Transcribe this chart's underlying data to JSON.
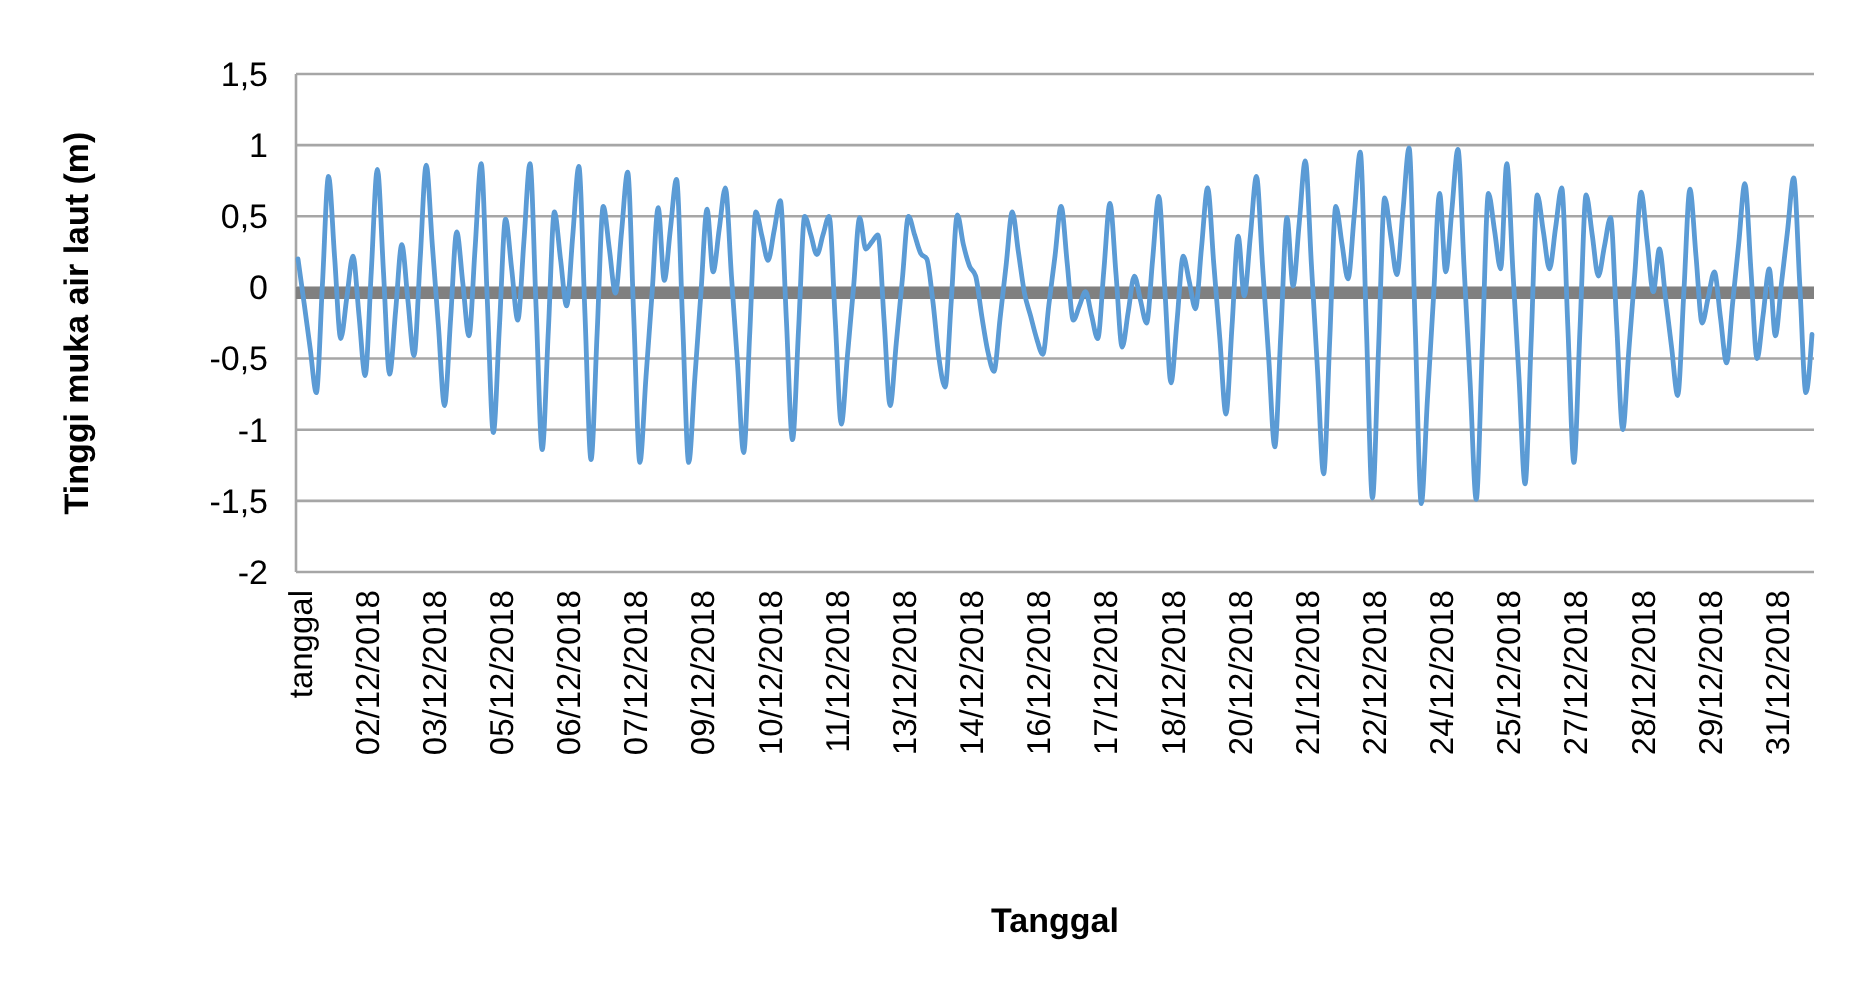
{
  "chart_data": {
    "type": "line",
    "xlabel": "Tanggal",
    "ylabel": "Tinggi muka air laut (m)",
    "categories": [
      "tanggal",
      null,
      null,
      null,
      null,
      null,
      null,
      null,
      null,
      null,
      null,
      "02/12/2018",
      null,
      null,
      null,
      null,
      null,
      null,
      null,
      null,
      null,
      null,
      "03/12/2018",
      null,
      null,
      null,
      null,
      null,
      null,
      null,
      null,
      null,
      null,
      "05/12/2018",
      null,
      null,
      null,
      null,
      null,
      null,
      null,
      null,
      null,
      null,
      "06/12/2018",
      null,
      null,
      null,
      null,
      null,
      null,
      null,
      null,
      null,
      null,
      "07/12/2018",
      null,
      null,
      null,
      null,
      null,
      null,
      null,
      null,
      null,
      null,
      "09/12/2018",
      null,
      null,
      null,
      null,
      null,
      null,
      null,
      null,
      null,
      null,
      "10/12/2018",
      null,
      null,
      null,
      null,
      null,
      null,
      null,
      null,
      null,
      null,
      "11/12/2018",
      null,
      null,
      null,
      null,
      null,
      null,
      null,
      null,
      null,
      null,
      "13/12/2018",
      null,
      null,
      null,
      null,
      null,
      null,
      null,
      null,
      null,
      null,
      "14/12/2018",
      null,
      null,
      null,
      null,
      null,
      null,
      null,
      null,
      null,
      null,
      "16/12/2018",
      null,
      null,
      null,
      null,
      null,
      null,
      null,
      null,
      null,
      null,
      "17/12/2018",
      null,
      null,
      null,
      null,
      null,
      null,
      null,
      null,
      null,
      null,
      "18/12/2018",
      null,
      null,
      null,
      null,
      null,
      null,
      null,
      null,
      null,
      null,
      "20/12/2018",
      null,
      null,
      null,
      null,
      null,
      null,
      null,
      null,
      null,
      null,
      "21/12/2018",
      null,
      null,
      null,
      null,
      null,
      null,
      null,
      null,
      null,
      null,
      "22/12/2018",
      null,
      null,
      null,
      null,
      null,
      null,
      null,
      null,
      null,
      null,
      "24/12/2018",
      null,
      null,
      null,
      null,
      null,
      null,
      null,
      null,
      null,
      null,
      "25/12/2018",
      null,
      null,
      null,
      null,
      null,
      null,
      null,
      null,
      null,
      null,
      "27/12/2018",
      null,
      null,
      null,
      null,
      null,
      null,
      null,
      null,
      null,
      null,
      "28/12/2018",
      null,
      null,
      null,
      null,
      null,
      null,
      null,
      null,
      null,
      null,
      "29/12/2018",
      null,
      null,
      null,
      null,
      null,
      null,
      null,
      null,
      null,
      null,
      "31/12/2018",
      null,
      null,
      null,
      null,
      null,
      null
    ],
    "series": [
      {
        "color": "#5b9bd5",
        "values": [
          0.2,
          -0.11,
          -0.43,
          -0.74,
          0.02,
          0.78,
          0.21,
          -0.36,
          -0.07,
          0.22,
          -0.2,
          -0.62,
          0.11,
          0.83,
          0.11,
          -0.61,
          -0.16,
          0.3,
          -0.09,
          -0.48,
          0.19,
          0.86,
          0.3,
          -0.27,
          -0.83,
          -0.22,
          0.39,
          0.03,
          -0.34,
          0.27,
          0.87,
          -0.08,
          -1.02,
          -0.27,
          0.48,
          0.13,
          -0.23,
          0.32,
          0.87,
          -0.14,
          -1.14,
          -0.31,
          0.53,
          0.2,
          -0.13,
          0.36,
          0.85,
          -0.18,
          -1.21,
          -0.32,
          0.57,
          0.27,
          -0.04,
          0.39,
          0.81,
          -0.21,
          -1.23,
          -0.63,
          -0.04,
          0.56,
          0.05,
          0.41,
          0.76,
          -0.24,
          -1.23,
          -0.64,
          -0.04,
          0.55,
          0.11,
          0.41,
          0.7,
          0.08,
          -0.54,
          -1.16,
          -0.32,
          0.53,
          0.36,
          0.19,
          0.4,
          0.61,
          -0.23,
          -1.07,
          -0.29,
          0.5,
          0.37,
          0.23,
          0.37,
          0.5,
          -0.23,
          -0.96,
          -0.48,
          0.0,
          0.49,
          0.27,
          0.32,
          0.37,
          -0.23,
          -0.83,
          -0.39,
          0.06,
          0.5,
          0.37,
          0.24,
          0.2,
          -0.1,
          -0.5,
          -0.7,
          -0.1,
          0.51,
          0.3,
          0.15,
          0.08,
          -0.2,
          -0.45,
          -0.59,
          -0.22,
          0.16,
          0.53,
          0.25,
          -0.04,
          -0.2,
          -0.36,
          -0.47,
          -0.12,
          0.22,
          0.57,
          0.17,
          -0.23,
          -0.13,
          -0.03,
          -0.2,
          -0.36,
          0.12,
          0.59,
          0.09,
          -0.42,
          -0.17,
          0.08,
          -0.09,
          -0.25,
          0.2,
          0.64,
          -0.02,
          -0.67,
          -0.23,
          0.22,
          0.04,
          -0.15,
          0.28,
          0.7,
          0.17,
          -0.36,
          -0.89,
          -0.27,
          0.36,
          -0.06,
          0.36,
          0.78,
          0.15,
          -0.49,
          -1.12,
          -0.32,
          0.49,
          0.01,
          0.45,
          0.89,
          0.16,
          -0.58,
          -1.31,
          -0.37,
          0.57,
          0.31,
          0.06,
          0.5,
          0.95,
          -0.27,
          -1.48,
          -0.43,
          0.63,
          0.36,
          0.09,
          0.54,
          0.98,
          -0.27,
          -1.52,
          -0.79,
          -0.07,
          0.66,
          0.11,
          0.54,
          0.97,
          0.15,
          -0.67,
          -1.49,
          -0.42,
          0.66,
          0.4,
          0.13,
          0.87,
          0.12,
          -0.63,
          -1.38,
          -0.37,
          0.65,
          0.39,
          0.13,
          0.42,
          0.7,
          -0.27,
          -1.23,
          -0.29,
          0.65,
          0.37,
          0.08,
          0.29,
          0.49,
          -0.26,
          -1.0,
          -0.44,
          0.11,
          0.67,
          0.32,
          -0.03,
          0.27,
          -0.07,
          -0.42,
          -0.76,
          -0.04,
          0.69,
          0.22,
          -0.25,
          -0.07,
          0.11,
          -0.21,
          -0.53,
          -0.11,
          0.31,
          0.73,
          0.12,
          -0.5,
          -0.19,
          0.13,
          -0.34,
          0.03,
          0.4,
          0.77,
          0.02,
          -0.74,
          -0.33
        ]
      }
    ],
    "ylim": [
      -2,
      1.5
    ],
    "yticks": [
      {
        "value": 1.5,
        "label": "1,5"
      },
      1,
      {
        "value": 0.5,
        "label": "0,5"
      },
      0,
      {
        "value": -0.5,
        "label": "-0,5"
      },
      -1,
      {
        "value": -1.5,
        "label": "-1,5"
      },
      -2
    ],
    "ref_lines": [
      {
        "axis": "y",
        "value": -0.04,
        "color": "#808080"
      }
    ],
    "grid": "y",
    "marker": "none",
    "line_style": "solid"
  }
}
